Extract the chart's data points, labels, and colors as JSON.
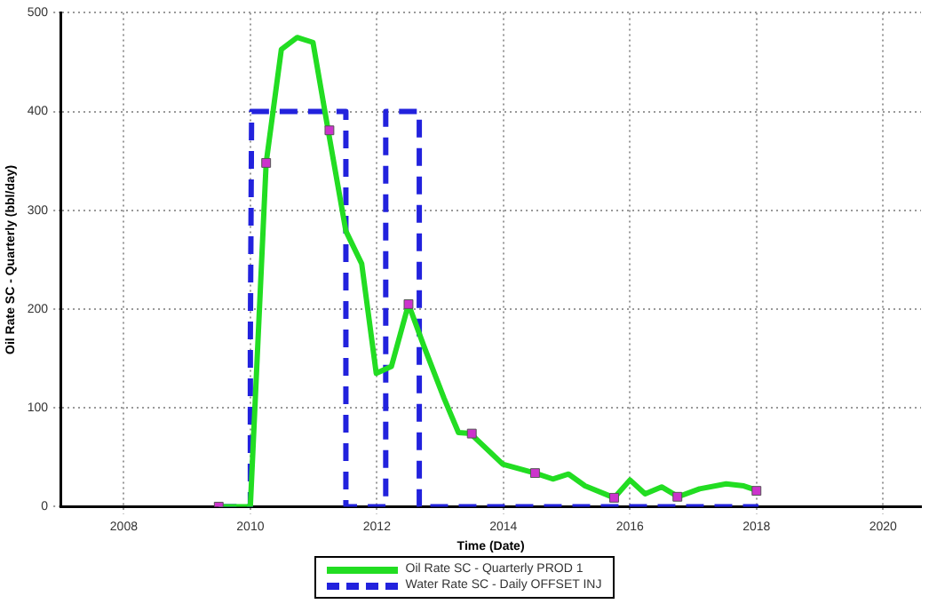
{
  "chart_data": {
    "type": "line",
    "xlabel": "Time (Date)",
    "ylabel": "Oil Rate SC - Quarterly (bbl/day)",
    "xlim": [
      2007,
      2020.6
    ],
    "xticks": [
      2008,
      2010,
      2012,
      2014,
      2016,
      2018,
      2020
    ],
    "ylim": [
      0,
      500
    ],
    "yticks": [
      0,
      100,
      200,
      300,
      400,
      500
    ],
    "grid": true,
    "legend": "bottom",
    "series": [
      {
        "name": "Oil Rate SC - Quarterly PROD 1",
        "color": "#22dd22",
        "line_style": "solid",
        "marker": "none",
        "x": [
          2009.5,
          2010,
          2010.25,
          2010.49,
          2010.74,
          2010.99,
          2011.23,
          2011.51,
          2011.76,
          2011.99,
          2012.23,
          2012.5,
          2012.74,
          2013.06,
          2013.29,
          2013.48,
          2013.99,
          2014.5,
          2014.78,
          2015.03,
          2015.29,
          2015.75,
          2016,
          2016.24,
          2016.5,
          2016.76,
          2017.1,
          2017.52,
          2017.8,
          2018.03
        ],
        "values": [
          0,
          0,
          348,
          463,
          475,
          470,
          381,
          279,
          246,
          135,
          142,
          205,
          163,
          110,
          75,
          74,
          43,
          34,
          28,
          33,
          21,
          9,
          27,
          13,
          20,
          10,
          18,
          23,
          21,
          16
        ]
      },
      {
        "name": "Water Rate SC - Daily OFFSET INJ",
        "color": "#2222dd",
        "line_style": "dashed",
        "marker": "none",
        "x": [
          2009.5,
          2010,
          2010,
          2010.02,
          2011.51,
          2011.51,
          2012.14,
          2012.14,
          2012.67,
          2012.67,
          2018.03
        ],
        "values": [
          0,
          0,
          170,
          400,
          400,
          0,
          0,
          400,
          400,
          0,
          0
        ]
      },
      {
        "type": "scatter",
        "color": "#cc33cc",
        "marker": "square",
        "x": [
          2009.5,
          2010.25,
          2011.25,
          2012.5,
          2013.5,
          2014.5,
          2015.75,
          2016.75,
          2018
        ],
        "values": [
          0,
          348,
          381,
          205,
          74,
          34,
          9,
          10,
          16
        ]
      }
    ]
  }
}
